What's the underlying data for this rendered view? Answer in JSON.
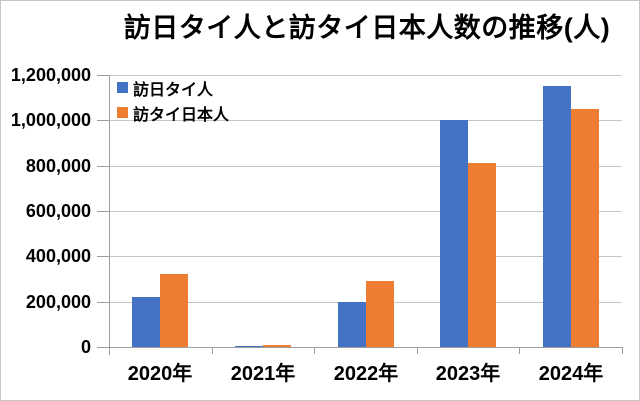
{
  "window": {
    "background": "#ffffff",
    "border_color": "#c6c6c6"
  },
  "chart_data": {
    "type": "bar",
    "title": "訪日タイ人と訪タイ日本人数の推移(人)",
    "categories": [
      "2020年",
      "2021年",
      "2022年",
      "2023年",
      "2024年"
    ],
    "series": [
      {
        "name": "訪日タイ人",
        "color": "#4472C4",
        "values": [
          220000,
          5000,
          200000,
          1000000,
          1150000
        ]
      },
      {
        "name": "訪タイ日本人",
        "color": "#ED7D31",
        "values": [
          320000,
          10000,
          290000,
          810000,
          1050000
        ]
      }
    ],
    "ylim": [
      0,
      1200000
    ],
    "y_tick_step": 200000,
    "y_tick_labels": [
      "0",
      "200,000",
      "400,000",
      "600,000",
      "800,000",
      "1,000,000",
      "1,200,000"
    ],
    "xlabel": "",
    "ylabel": "",
    "grid": true,
    "legend_position": "top-left",
    "colors": {
      "gridline": "#c6c6c6",
      "axis": "#9e9e9e",
      "text": "#000000"
    }
  }
}
